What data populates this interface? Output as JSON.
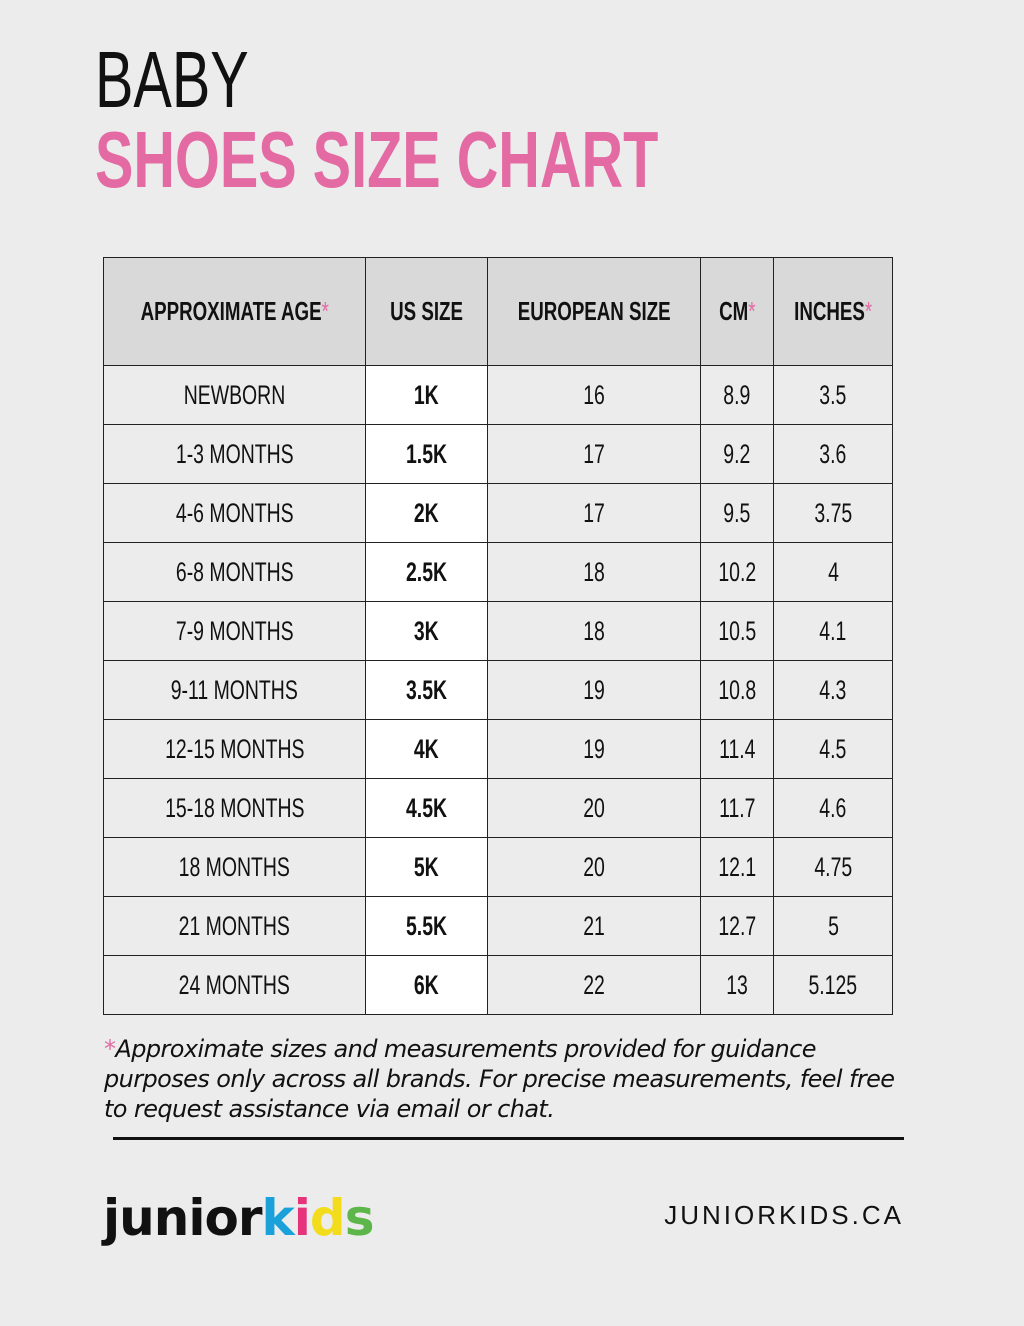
{
  "title": {
    "line1": "BABY",
    "line2": "SHOES SIZE CHART"
  },
  "table": {
    "headers": [
      "APPROXIMATE AGE",
      "US SIZE",
      "EUROPEAN SIZE",
      "CM",
      "INCHES"
    ],
    "header_asterisk": [
      true,
      false,
      false,
      true,
      true
    ],
    "rows": [
      [
        "NEWBORN",
        "1K",
        "16",
        "8.9",
        "3.5"
      ],
      [
        "1-3 MONTHS",
        "1.5K",
        "17",
        "9.2",
        "3.6"
      ],
      [
        "4-6 MONTHS",
        "2K",
        "17",
        "9.5",
        "3.75"
      ],
      [
        "6-8 MONTHS",
        "2.5K",
        "18",
        "10.2",
        "4"
      ],
      [
        "7-9 MONTHS",
        "3K",
        "18",
        "10.5",
        "4.1"
      ],
      [
        "9-11 MONTHS",
        "3.5K",
        "19",
        "10.8",
        "4.3"
      ],
      [
        "12-15 MONTHS",
        "4K",
        "19",
        "11.4",
        "4.5"
      ],
      [
        "15-18 MONTHS",
        "4.5K",
        "20",
        "11.7",
        "4.6"
      ],
      [
        "18 MONTHS",
        "5K",
        "20",
        "12.1",
        "4.75"
      ],
      [
        "21 MONTHS",
        "5.5K",
        "21",
        "12.7",
        "5"
      ],
      [
        "24 MONTHS",
        "6K",
        "22",
        "13",
        "5.125"
      ]
    ]
  },
  "footnote": {
    "asterisk": "*",
    "text": "Approximate sizes and measurements provided for guidance purposes only across all brands. For precise measurements, feel free to request assistance via email or chat."
  },
  "footer": {
    "logo": "juniorkids",
    "logo_parts": [
      "junior",
      "k",
      "i",
      "d",
      "s"
    ],
    "website": "JUNIORKIDS.CA"
  },
  "colors": {
    "accent_pink": "#e36aa3",
    "logo_k": "#1ba1d9",
    "logo_i": "#e6337a",
    "logo_d": "#f2dc1b",
    "logo_s": "#5db64a"
  }
}
